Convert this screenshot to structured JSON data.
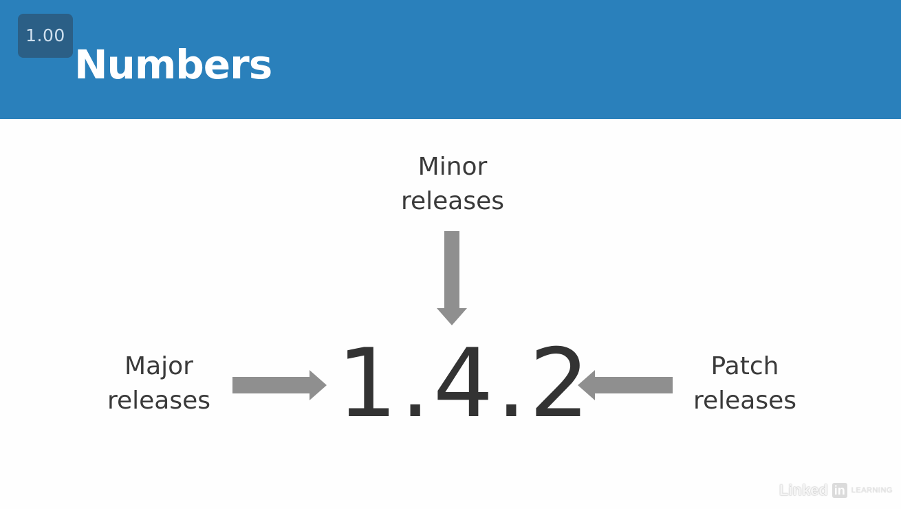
{
  "player": {
    "speed_label": "1.00"
  },
  "slide": {
    "title": "Numbers",
    "version_number": "1.4.2",
    "labels": {
      "minor": [
        "Minor",
        "releases"
      ],
      "major": [
        "Major",
        "releases"
      ],
      "patch": [
        "Patch",
        "releases"
      ]
    }
  },
  "branding": {
    "logo_word": "Linked",
    "logo_in": "in",
    "logo_suffix": "LEARNING"
  },
  "colors": {
    "header": "#2a80bb",
    "badge": "#2b5f86",
    "arrow": "#8f8f8f",
    "text": "#333333"
  },
  "icons": {
    "minor_arrow": "arrow-down-icon",
    "major_arrow": "arrow-right-icon",
    "patch_arrow": "arrow-left-icon"
  }
}
